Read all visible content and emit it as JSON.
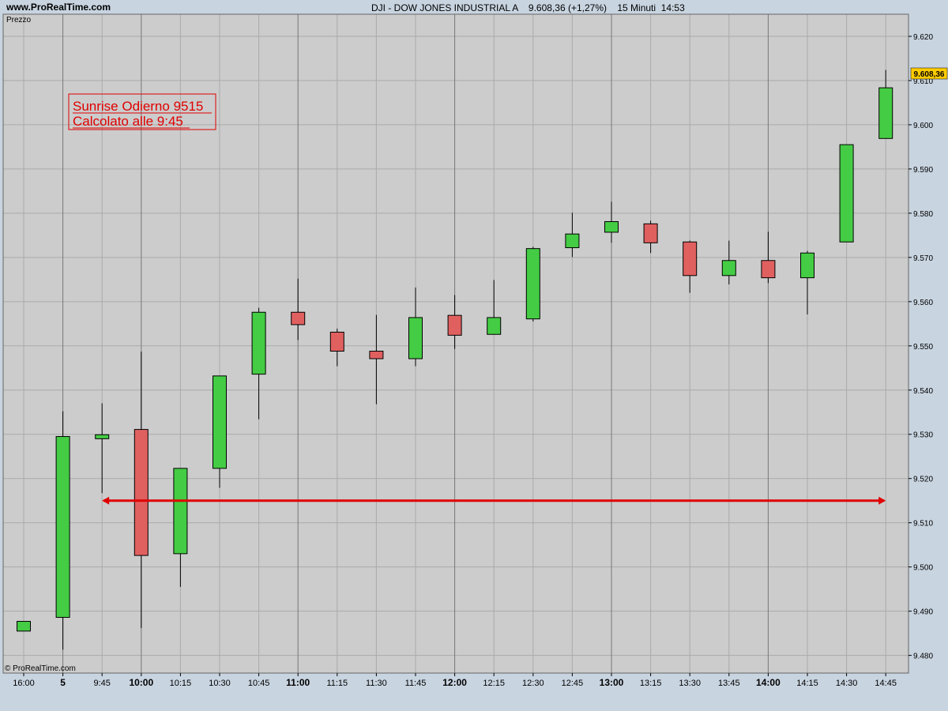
{
  "header": {
    "site": "www.ProRealTime.com",
    "symbol": "DJI - DOW JONES INDUSTRIAL A",
    "price_change": "9.608,36 (+1,27%)",
    "timeframe": "15 Minuti",
    "time": "14:53"
  },
  "panel_label": "Prezzo",
  "copyright": "© ProRealTime.com",
  "annotation": {
    "line1": "Sunrise Odierno 9515",
    "line2": "Calcolato alle 9:45"
  },
  "last_price_label": "9.608,36",
  "colors": {
    "up": "#44cc44",
    "down": "#e06060",
    "annotation": "#e00000",
    "background": "#cccccc",
    "frame": "#c8d4e0",
    "price_tag": "#ffcc00"
  },
  "chart_data": {
    "type": "candlestick",
    "title": "DJI - DOW JONES INDUSTRIAL A",
    "x_tick_labels": [
      "16:00",
      "5",
      "9:45",
      "10:00",
      "10:15",
      "10:30",
      "10:45",
      "11:00",
      "11:15",
      "11:30",
      "11:45",
      "12:00",
      "12:15",
      "12:30",
      "12:45",
      "13:00",
      "13:15",
      "13:30",
      "13:45",
      "14:00",
      "14:15",
      "14:30",
      "14:45"
    ],
    "bold_ticks": [
      "5",
      "10:00",
      "11:00",
      "12:00",
      "13:00",
      "14:00"
    ],
    "y_ticks": [
      "9.620",
      "9.610",
      "9.600",
      "9.590",
      "9.580",
      "9.570",
      "9.560",
      "9.550",
      "9.540",
      "9.530",
      "9.520",
      "9.510",
      "9.500",
      "9.490",
      "9.480"
    ],
    "y_tick_values": [
      9620,
      9610,
      9600,
      9590,
      9580,
      9570,
      9560,
      9550,
      9540,
      9530,
      9520,
      9510,
      9500,
      9490,
      9480
    ],
    "ylim": [
      9476,
      9625
    ],
    "candles": [
      {
        "x": "16:00",
        "open": 9485.5,
        "high": 9487.7,
        "low": 9485.5,
        "close": 9487.7
      },
      {
        "x": "5",
        "open": 9488.6,
        "high": 9535.2,
        "low": 9481.3,
        "close": 9529.5
      },
      {
        "x": "9:45",
        "open": 9529.0,
        "high": 9537.0,
        "low": 9516.7,
        "close": 9529.9
      },
      {
        "x": "10:00",
        "open": 9531.1,
        "high": 9548.7,
        "low": 9486.2,
        "close": 9502.6
      },
      {
        "x": "10:15",
        "open": 9503.0,
        "high": 9522.3,
        "low": 9495.5,
        "close": 9522.3
      },
      {
        "x": "10:30",
        "open": 9522.3,
        "high": 9543.2,
        "low": 9517.9,
        "close": 9543.2
      },
      {
        "x": "10:45",
        "open": 9543.6,
        "high": 9558.6,
        "low": 9533.4,
        "close": 9557.6
      },
      {
        "x": "11:00",
        "open": 9557.6,
        "high": 9565.2,
        "low": 9551.3,
        "close": 9554.8
      },
      {
        "x": "11:15",
        "open": 9553.1,
        "high": 9553.9,
        "low": 9545.4,
        "close": 9548.8
      },
      {
        "x": "11:30",
        "open": 9548.8,
        "high": 9557.0,
        "low": 9536.8,
        "close": 9547.1
      },
      {
        "x": "11:45",
        "open": 9547.1,
        "high": 9563.2,
        "low": 9545.4,
        "close": 9556.4
      },
      {
        "x": "12:00",
        "open": 9556.9,
        "high": 9561.5,
        "low": 9549.3,
        "close": 9552.4
      },
      {
        "x": "12:15",
        "open": 9552.6,
        "high": 9564.9,
        "low": 9552.6,
        "close": 9556.4
      },
      {
        "x": "12:30",
        "open": 9556.1,
        "high": 9572.4,
        "low": 9555.5,
        "close": 9572.0
      },
      {
        "x": "12:45",
        "open": 9572.2,
        "high": 9580.1,
        "low": 9570.1,
        "close": 9575.3
      },
      {
        "x": "13:00",
        "open": 9575.7,
        "high": 9582.6,
        "low": 9573.3,
        "close": 9578.1
      },
      {
        "x": "13:15",
        "open": 9577.6,
        "high": 9578.3,
        "low": 9571.0,
        "close": 9573.3
      },
      {
        "x": "13:30",
        "open": 9573.5,
        "high": 9573.8,
        "low": 9562.0,
        "close": 9565.9
      },
      {
        "x": "13:45",
        "open": 9565.9,
        "high": 9573.8,
        "low": 9563.9,
        "close": 9569.3
      },
      {
        "x": "14:00",
        "open": 9569.3,
        "high": 9575.8,
        "low": 9564.2,
        "close": 9565.4
      },
      {
        "x": "14:15",
        "open": 9565.4,
        "high": 9571.5,
        "low": 9557.1,
        "close": 9571.0
      },
      {
        "x": "14:30",
        "open": 9573.5,
        "high": 9595.5,
        "low": 9573.5,
        "close": 9595.5
      },
      {
        "x": "14:45",
        "open": 9596.9,
        "high": 9612.4,
        "low": 9596.9,
        "close": 9608.36
      }
    ],
    "level_line": {
      "value": 9515,
      "from": "9:45",
      "to": "14:45"
    },
    "grid": true
  }
}
